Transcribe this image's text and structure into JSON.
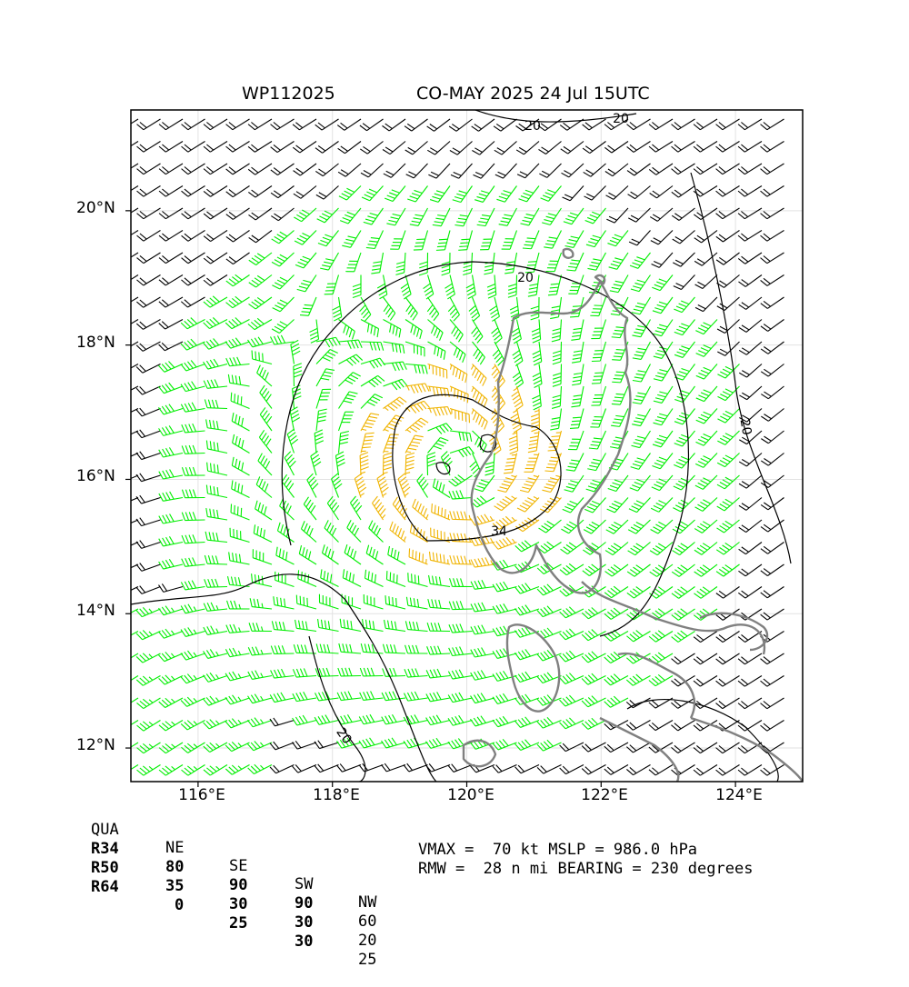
{
  "header": {
    "storm_id": "WP112025",
    "storm_name_time": "CO-MAY 2025 24 Jul 15UTC"
  },
  "map": {
    "lon_labels": [
      "116°E",
      "118°E",
      "120°E",
      "122°E",
      "124°E"
    ],
    "lat_labels": [
      "20°N",
      "18°N",
      "16°N",
      "14°N",
      "12°N"
    ],
    "lon_range": [
      115.0,
      125.0
    ],
    "lat_range": [
      11.5,
      21.5
    ],
    "contour_labels": [
      "20",
      "20",
      "20",
      "20",
      "34",
      "20"
    ],
    "barb_colors": {
      "below_34kt": "#000000",
      "34_to_50kt": "#00ee00",
      "50_to_64kt": "#f0b400",
      "64kt_plus": "#ff4400"
    },
    "coastline_color": "#808080",
    "grid": true
  },
  "wind_radii_table": {
    "headers": [
      "QUA",
      "NE",
      "SE",
      "SW",
      "NW"
    ],
    "rows": [
      {
        "label": "R34",
        "values": [
          "80",
          "90",
          "90",
          "60"
        ]
      },
      {
        "label": "R50",
        "values": [
          "35",
          "30",
          "30",
          "20"
        ]
      },
      {
        "label": "R64",
        "values": [
          "0",
          "25",
          "30",
          "25"
        ]
      }
    ]
  },
  "storm_info": {
    "line1": "VMAX =  70 kt MSLP = 986.0 hPa",
    "line2": "RMW =  28 n mi BEARING = 230 degrees"
  }
}
